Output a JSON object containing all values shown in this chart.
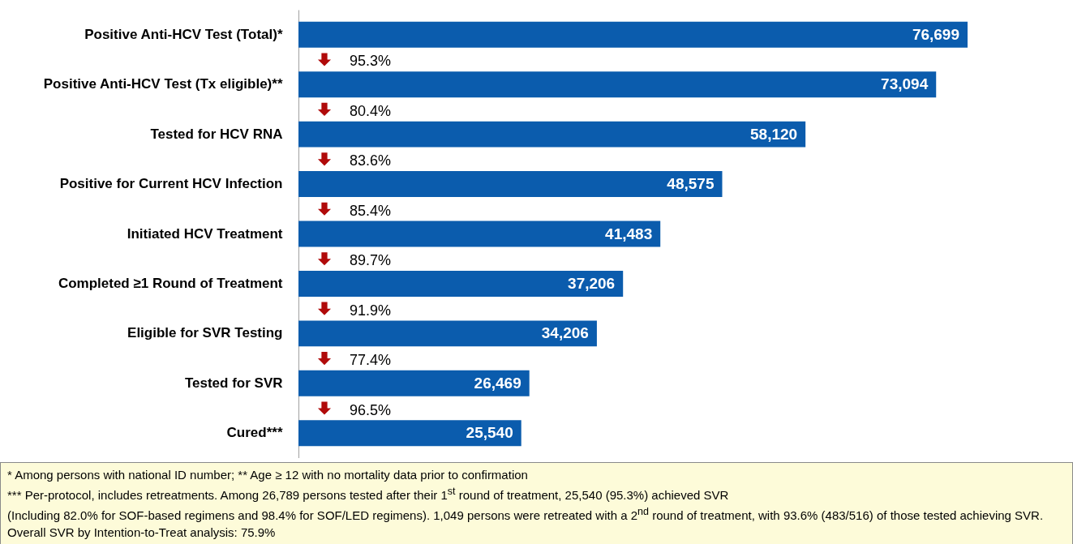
{
  "chart_data": {
    "type": "bar",
    "orientation": "horizontal",
    "color": "#0b5cad",
    "categories": [
      "Positive Anti-HCV Test (Total)*",
      "Positive Anti-HCV Test (Tx eligible)**",
      "Tested for HCV RNA",
      "Positive for Current HCV Infection",
      "Initiated HCV Treatment",
      "Completed ≥1 Round of Treatment",
      "Eligible for SVR Testing",
      "Tested for SVR",
      "Cured***"
    ],
    "values": [
      76699,
      73094,
      58120,
      48575,
      41483,
      37206,
      34206,
      26469,
      25540
    ],
    "value_labels": [
      "76,699",
      "73,094",
      "58,120",
      "48,575",
      "41,483",
      "37,206",
      "34,206",
      "26,469",
      "25,540"
    ],
    "tick_labels": "y",
    "annotations": [
      "95.3%",
      "80.4%",
      "83.6%",
      "85.4%",
      "89.7%",
      "91.9%",
      "77.4%",
      "96.5%",
      "* Among persons with national ID number;  ** Age ≥ 12 with no mortality data prior to confirmation",
      "*** Per-protocol, includes retreatments. Among 26,789 persons tested after their 1$^{st}$ round of treatment, 25,540 (95.3%) achieved SVR",
      "(Including 82.0% for SOF-based regimens and 98.4% for SOF/LED regimens).  1,049 persons were retreated with a 2$^{nd}$ round of treatment, with 93.6% (483/516) of those tested achieving SVR. Overall SVR by Intention-to-Treat analysis: 75.9%"
    ]
  }
}
